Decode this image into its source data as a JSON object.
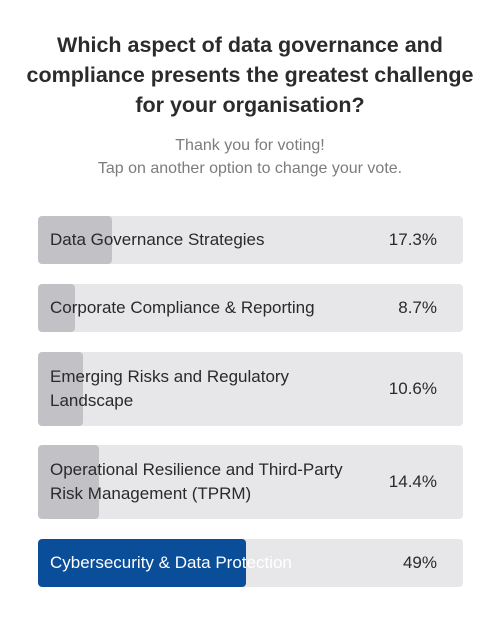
{
  "poll": {
    "question": "Which aspect of data governance and compliance presents the greatest challenge for your organisation?",
    "thanks_line1": "Thank you for voting!",
    "thanks_line2": "Tap on another option to change your vote.",
    "options": [
      {
        "label": "Data Governance Strategies",
        "percent_text": "17.3%",
        "percent": 17.3,
        "selected": false
      },
      {
        "label": "Corporate Compliance & Reporting",
        "percent_text": "8.7%",
        "percent": 8.7,
        "selected": false
      },
      {
        "label": "Emerging Risks and Regulatory Landscape",
        "percent_text": "10.6%",
        "percent": 10.6,
        "selected": false
      },
      {
        "label": "Operational Resilience and Third-Party Risk Management (TPRM)",
        "percent_text": "14.4%",
        "percent": 14.4,
        "selected": false
      },
      {
        "label": "Cybersecurity & Data Protection",
        "percent_text": "49%",
        "percent": 49,
        "selected": true
      }
    ]
  },
  "colors": {
    "accent": "#0a4d98",
    "bar_track": "#e7e7ea",
    "bar_fill": "#c1c1c6"
  }
}
